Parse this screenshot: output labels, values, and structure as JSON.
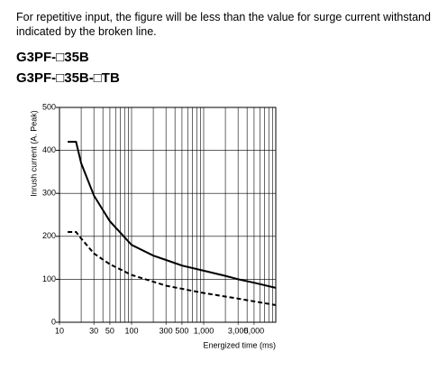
{
  "header": {
    "note": "For repetitive input, the figure will be less than the value for surge current withstand indicated by the broken line.",
    "models": [
      "G3PF-□35B",
      "G3PF-□35B-□TB"
    ]
  },
  "chart_data": {
    "type": "line",
    "x_label": "Energized time (ms)",
    "y_label": "Inrush current (A. Peak)",
    "xlog": true,
    "xlim": [
      10,
      10000
    ],
    "ylim": [
      0,
      500
    ],
    "xticks": [
      10,
      30,
      50,
      100,
      300,
      500,
      {
        "value": 1000,
        "label": "1,000"
      },
      {
        "value": 3000,
        "label": "3,000"
      },
      {
        "value": 5000,
        "label": "5,000"
      }
    ],
    "xminor_ticks": [
      20,
      40,
      60,
      70,
      80,
      90,
      200,
      400,
      600,
      700,
      800,
      900,
      2000,
      4000,
      6000,
      7000,
      8000,
      9000,
      10000
    ],
    "yticks": [
      0,
      100,
      200,
      300,
      400,
      500
    ],
    "grid": true,
    "series": [
      {
        "color": "#000000",
        "dashed": false,
        "x": [
          13,
          17,
          20,
          30,
          50,
          100,
          200,
          300,
          500,
          1000,
          2000,
          3000,
          5000,
          10000
        ],
        "values": [
          420,
          420,
          370,
          295,
          235,
          180,
          155,
          145,
          132,
          120,
          108,
          100,
          92,
          80
        ]
      },
      {
        "color": "#000000",
        "dashed": true,
        "x": [
          13,
          17,
          20,
          30,
          50,
          100,
          300,
          1000,
          3000,
          10000
        ],
        "values": [
          210,
          210,
          195,
          160,
          135,
          110,
          85,
          68,
          55,
          40
        ]
      }
    ]
  }
}
